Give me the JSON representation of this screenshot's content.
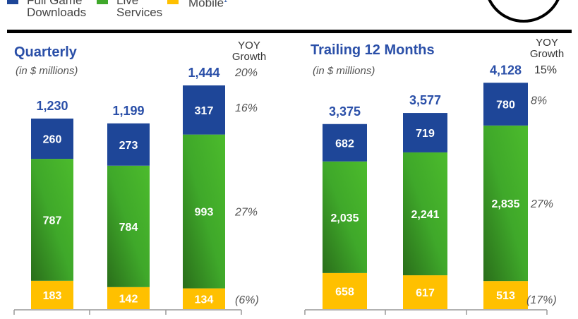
{
  "legend": {
    "items": [
      {
        "label_line1": "Full Game",
        "label_line2": "Downloads",
        "color": "#1e4698"
      },
      {
        "label_line1": "Live",
        "label_line2": "Services",
        "color": "#3fa82a"
      },
      {
        "label_line1": "Mobile",
        "label_line2": "",
        "sup": "1",
        "color": "#ffc000"
      }
    ]
  },
  "colors": {
    "title": "#2a4fa8",
    "total_label": "#2a4fa8",
    "growth_text": "#555555",
    "full_game": "#1e4698",
    "live_services": "#3fa82a",
    "live_services_dark": "#2a6e1a",
    "mobile": "#ffc000"
  },
  "chart_data": [
    {
      "type": "bar",
      "stacked": true,
      "title": "Quarterly",
      "subtitle": "(in $ millions)",
      "yoy_header": [
        "YOY",
        "Growth"
      ],
      "categories": [
        "",
        "",
        ""
      ],
      "series": [
        {
          "name": "Mobile",
          "values": [
            183,
            142,
            134
          ],
          "yoy_growth": "(6%)"
        },
        {
          "name": "Live Services",
          "values": [
            787,
            784,
            993
          ],
          "yoy_growth": "27%"
        },
        {
          "name": "Full Game Downloads",
          "values": [
            260,
            273,
            317
          ],
          "yoy_growth": "16%"
        }
      ],
      "totals": [
        "1,230",
        "1,199",
        "1,444"
      ],
      "total_yoy_growth": "20%",
      "value_labels": {
        "Mobile": [
          "183",
          "142",
          "134"
        ],
        "Live Services": [
          "787",
          "784",
          "993"
        ],
        "Full Game Downloads": [
          "260",
          "273",
          "317"
        ]
      },
      "ylim": [
        0,
        1600
      ],
      "grid": false
    },
    {
      "type": "bar",
      "stacked": true,
      "title": "Trailing 12 Months",
      "subtitle": "(in $ millions)",
      "yoy_header": [
        "YOY",
        "Growth"
      ],
      "categories": [
        "",
        "",
        ""
      ],
      "series": [
        {
          "name": "Mobile",
          "values": [
            658,
            617,
            513
          ],
          "yoy_growth": "(17%)"
        },
        {
          "name": "Live Services",
          "values": [
            2035,
            2241,
            2835
          ],
          "yoy_growth": "27%"
        },
        {
          "name": "Full Game Downloads",
          "values": [
            682,
            719,
            780
          ],
          "yoy_growth": "8%"
        }
      ],
      "totals": [
        "3,375",
        "3,577",
        "4,128"
      ],
      "total_yoy_growth": "15%",
      "value_labels": {
        "Mobile": [
          "658",
          "617",
          "513"
        ],
        "Live Services": [
          "2,035",
          "2,241",
          "2,835"
        ],
        "Full Game Downloads": [
          "682",
          "719",
          "780"
        ]
      },
      "ylim": [
        0,
        4600
      ],
      "grid": false
    }
  ]
}
